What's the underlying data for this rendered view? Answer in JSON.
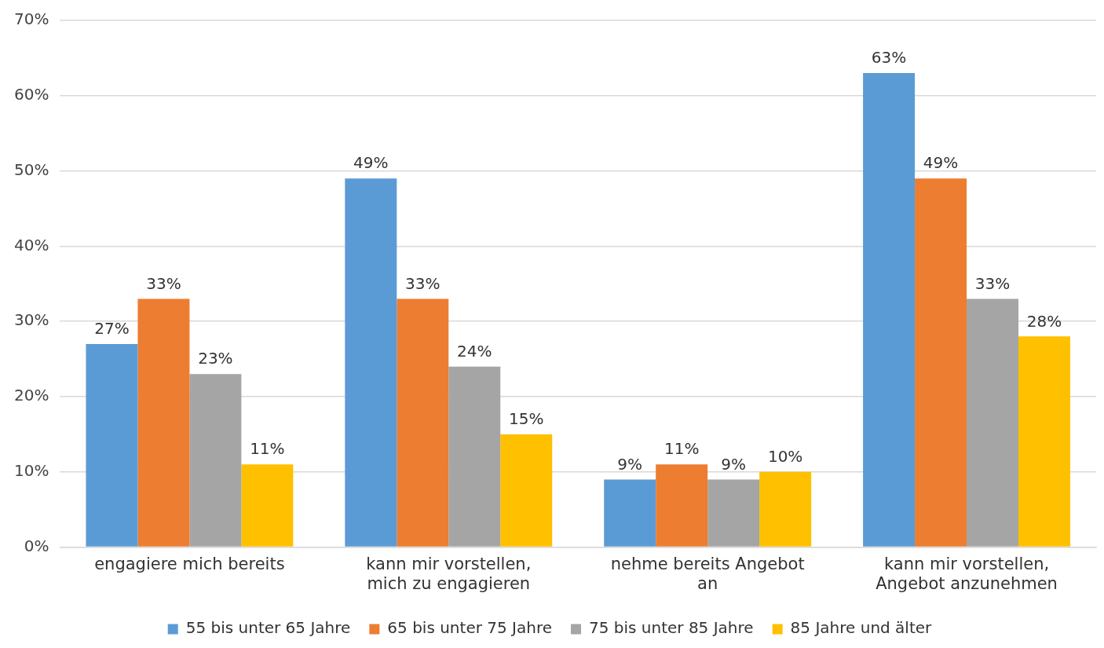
{
  "chart_data": {
    "type": "bar",
    "categories": [
      "engagiere mich bereits",
      "kann mir vorstellen, mich zu engagieren",
      "nehme bereits Angebot an",
      "kann mir vorstellen, Angebot anzunehmen"
    ],
    "series": [
      {
        "name": "55 bis unter 65 Jahre",
        "color": "#5b9bd5",
        "values": [
          27,
          49,
          9,
          63
        ],
        "value_labels": [
          "27%",
          "49%",
          "9%",
          "63%"
        ]
      },
      {
        "name": "65 bis unter 75 Jahre",
        "color": "#ed7d31",
        "values": [
          33,
          33,
          11,
          49
        ],
        "value_labels": [
          "33%",
          "33%",
          "11%",
          "49%"
        ]
      },
      {
        "name": "75 bis unter 85 Jahre",
        "color": "#a5a5a5",
        "values": [
          23,
          24,
          9,
          33
        ],
        "value_labels": [
          "23%",
          "24%",
          "9%",
          "33%"
        ]
      },
      {
        "name": "85 Jahre und älter",
        "color": "#ffc000",
        "values": [
          11,
          15,
          10,
          28
        ],
        "value_labels": [
          "11%",
          "15%",
          "10%",
          "28%"
        ]
      }
    ],
    "ylim": [
      0,
      70
    ],
    "yticks": [
      {
        "value": 0,
        "label": "0%"
      },
      {
        "value": 10,
        "label": "10%"
      },
      {
        "value": 20,
        "label": "20%"
      },
      {
        "value": 30,
        "label": "30%"
      },
      {
        "value": 40,
        "label": "40%"
      },
      {
        "value": 50,
        "label": "50%"
      },
      {
        "value": 60,
        "label": "60%"
      },
      {
        "value": 70,
        "label": "70%"
      }
    ],
    "grid": "y",
    "legend": "bottom"
  }
}
